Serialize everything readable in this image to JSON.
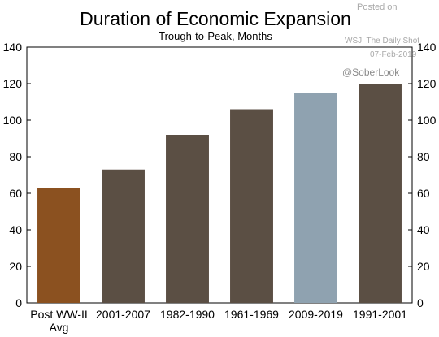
{
  "chart_data": {
    "type": "bar",
    "title": "Duration of Economic Expansion",
    "subtitle": "Trough-to-Peak, Months",
    "categories": [
      "Post WW-II Avg",
      "2001-2007",
      "1982-1990",
      "1961-1969",
      "2009-2019",
      "1991-2001"
    ],
    "category_lines": [
      [
        "Post WW-II",
        "Avg"
      ],
      [
        "2001-2007"
      ],
      [
        "1982-1990"
      ],
      [
        "1961-1969"
      ],
      [
        "2009-2019"
      ],
      [
        "1991-2001"
      ]
    ],
    "values": [
      63,
      73,
      92,
      106,
      115,
      120
    ],
    "colors": [
      "#8B5120",
      "#5B4F44",
      "#5B4F44",
      "#5B4F44",
      "#8FA2B0",
      "#5B4F44"
    ],
    "ylim": [
      0,
      140
    ],
    "yticks": [
      0,
      20,
      40,
      60,
      80,
      100,
      120,
      140
    ],
    "xlabel": "",
    "ylabel": "",
    "grid": false,
    "legend": "none"
  },
  "watermark": {
    "posted": "Posted on",
    "source": "WSJ: The Daily Shot",
    "date": "07-Feb-2019",
    "handle": "@SoberLook"
  }
}
